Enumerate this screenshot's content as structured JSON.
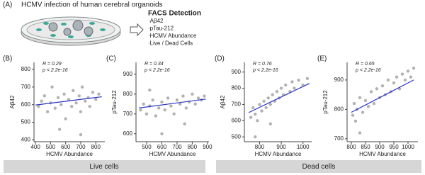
{
  "panel_a": {
    "label": "(A)",
    "title": "HCMV infection of human cerebral organoids",
    "list_title": "FACS Detection",
    "items": [
      "·Aβ42",
      "·pTau-212",
      "·HCMV Abundance",
      "·Live / Dead Cells"
    ]
  },
  "groups": [
    {
      "label": "Live cells"
    },
    {
      "label": "Dead cells"
    }
  ],
  "chart_data": [
    {
      "type": "scatter",
      "label": "(B)",
      "annotations": [
        "R = 0.29",
        "p < 2.2e-16"
      ],
      "xlabel": "HCMV Abundance",
      "ylabel": "Aβ42",
      "color": "#aaaaaa",
      "fit_color": "#2a33c8",
      "x": [
        420,
        440,
        460,
        480,
        500,
        510,
        530,
        550,
        570,
        590,
        600,
        620,
        640,
        650,
        670,
        690,
        700,
        710,
        730,
        750,
        760,
        780,
        800,
        820,
        560,
        700
      ],
      "y": [
        590,
        620,
        650,
        560,
        610,
        700,
        580,
        640,
        600,
        660,
        520,
        630,
        590,
        680,
        610,
        650,
        560,
        700,
        620,
        640,
        590,
        670,
        630,
        660,
        460,
        430
      ],
      "fit": {
        "x": [
          400,
          840
        ],
        "y": [
          598,
          645
        ]
      },
      "xlim": [
        390,
        860
      ],
      "ylim": [
        390,
        840
      ],
      "xticks": [
        400,
        500,
        600,
        700,
        800
      ],
      "yticks": [
        400,
        500,
        600,
        700,
        800
      ]
    },
    {
      "type": "scatter",
      "label": "(C)",
      "annotations": [
        "R = 0.34",
        "p < 2.2e-16"
      ],
      "xlabel": "HCMV Abundance",
      "ylabel": "pTau-212",
      "color": "#aaaaaa",
      "fit_color": "#2a33c8",
      "x": [
        460,
        480,
        500,
        520,
        540,
        560,
        580,
        600,
        620,
        640,
        660,
        680,
        700,
        720,
        740,
        760,
        780,
        800,
        820,
        840,
        860,
        880,
        600,
        750,
        520
      ],
      "y": [
        720,
        750,
        700,
        740,
        770,
        690,
        730,
        760,
        720,
        780,
        740,
        700,
        770,
        750,
        790,
        730,
        760,
        800,
        750,
        780,
        770,
        790,
        600,
        650,
        820
      ],
      "fit": {
        "x": [
          450,
          890
        ],
        "y": [
          730,
          775
        ]
      },
      "xlim": [
        430,
        910
      ],
      "ylim": [
        560,
        960
      ],
      "xticks": [
        500,
        600,
        700,
        800,
        900
      ],
      "yticks": [
        600,
        700,
        800,
        900
      ]
    },
    {
      "type": "scatter",
      "label": "(D)",
      "annotations": [
        "R = 0.76",
        "p < 2.2e-16"
      ],
      "xlabel": "HCMV Abundance",
      "ylabel": "Aβ42",
      "color": "#aaaaaa",
      "fit_color": "#2a33c8",
      "x": [
        760,
        770,
        780,
        790,
        800,
        810,
        820,
        830,
        840,
        850,
        860,
        870,
        880,
        890,
        900,
        910,
        920,
        940,
        950,
        960,
        980,
        1000,
        1020,
        780,
        850
      ],
      "y": [
        620,
        680,
        640,
        600,
        700,
        660,
        720,
        680,
        740,
        700,
        760,
        720,
        780,
        740,
        800,
        760,
        820,
        780,
        840,
        800,
        850,
        820,
        860,
        500,
        580
      ],
      "fit": {
        "x": [
          750,
          1030
        ],
        "y": [
          650,
          830
        ]
      },
      "xlim": [
        730,
        1040
      ],
      "ylim": [
        470,
        960
      ],
      "xticks": [
        800,
        900,
        1000
      ],
      "yticks": [
        500,
        600,
        700,
        800,
        900
      ]
    },
    {
      "type": "scatter",
      "label": "(E)",
      "annotations": [
        "R = 0.65",
        "p < 2.2e-16"
      ],
      "xlabel": "HCMV Abundance",
      "ylabel": "pTau-212",
      "color": "#aaaaaa",
      "fit_color": "#2a33c8",
      "x": [
        805,
        810,
        815,
        820,
        830,
        840,
        850,
        860,
        870,
        880,
        890,
        900,
        910,
        920,
        930,
        940,
        950,
        960,
        970,
        980,
        990,
        1000,
        1010,
        1020,
        830
      ],
      "y": [
        780,
        820,
        760,
        800,
        840,
        790,
        830,
        810,
        860,
        820,
        870,
        840,
        880,
        850,
        900,
        860,
        890,
        910,
        870,
        920,
        900,
        930,
        910,
        940,
        720
      ],
      "fit": {
        "x": [
          800,
          1020
        ],
        "y": [
          790,
          900
        ]
      },
      "xlim": [
        785,
        1035
      ],
      "ylim": [
        690,
        960
      ],
      "xticks": [
        800,
        850,
        900,
        950,
        1000
      ],
      "yticks": [
        700,
        800,
        900
      ]
    }
  ]
}
